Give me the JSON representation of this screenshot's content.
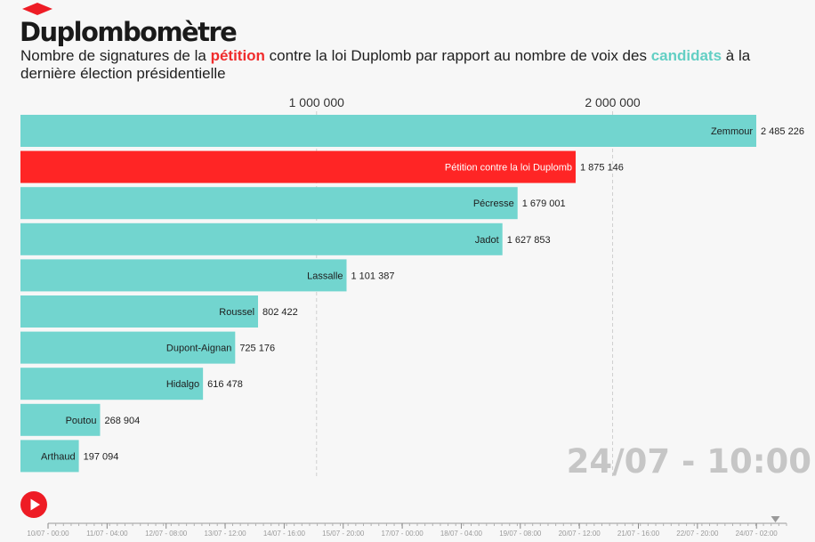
{
  "header": {
    "title": "Duplombomètre",
    "subtitle_part1": "Nombre de signatures de la ",
    "subtitle_highlight1": "pétition",
    "subtitle_part2": " contre la loi Duplomb par rapport au nombre de voix des ",
    "subtitle_highlight2": "candidats",
    "subtitle_part3": " à la dernière élection présidentielle"
  },
  "colors": {
    "petition": "#ff2525",
    "candidate": "#72d5cf",
    "brand": "#ee1c25",
    "timestamp": "#c6c6c6"
  },
  "chart_data": {
    "type": "bar",
    "orientation": "horizontal",
    "title": "Duplombomètre",
    "xlim": [
      0,
      2485226
    ],
    "x_ticks": [
      1000000,
      2000000
    ],
    "x_tick_labels": [
      "1 000 000",
      "2 000 000"
    ],
    "grid": true,
    "categories": [
      "Zemmour",
      "Pétition contre la loi Duplomb",
      "Pécresse",
      "Jadot",
      "Lassalle",
      "Roussel",
      "Dupont-Aignan",
      "Hidalgo",
      "Poutou",
      "Arthaud"
    ],
    "values": [
      2485226,
      1875146,
      1679001,
      1627853,
      1101387,
      802422,
      725176,
      616478,
      268904,
      197094
    ],
    "value_labels": [
      "2 485 226",
      "1 875 146",
      "1 679 001",
      "1 627 853",
      "1 101 387",
      "802 422",
      "725 176",
      "616 478",
      "268 904",
      "197 094"
    ],
    "highlight": [
      "candidate",
      "petition",
      "candidate",
      "candidate",
      "candidate",
      "candidate",
      "candidate",
      "candidate",
      "candidate",
      "candidate"
    ]
  },
  "timestamp": "24/07 - 10:00",
  "timeline": {
    "labels": [
      "10/07 - 00:00",
      "11/07 - 04:00",
      "12/07 - 08:00",
      "13/07 - 12:00",
      "14/07 - 16:00",
      "15/07 - 20:00",
      "17/07 - 00:00",
      "18/07 - 04:00",
      "19/07 - 08:00",
      "20/07 - 12:00",
      "21/07 - 16:00",
      "22/07 - 20:00",
      "24/07 - 02:00"
    ],
    "position_fraction": 0.985
  },
  "controls": {
    "play_icon": "play-icon"
  }
}
